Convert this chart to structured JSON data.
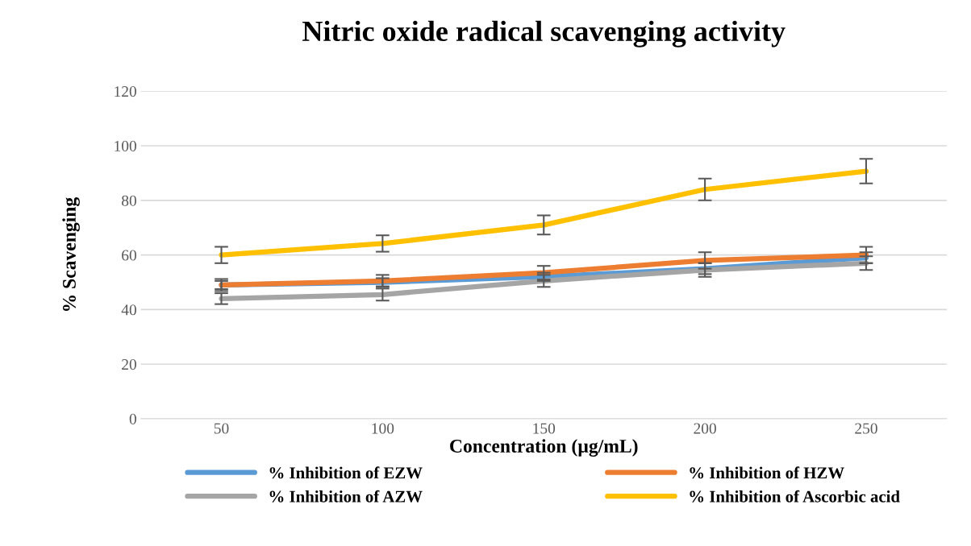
{
  "chart_data": {
    "type": "line",
    "title": "Nitric oxide radical scavenging activity",
    "xlabel": "Concentration (µg/mL)",
    "ylabel": "% Scavenging",
    "categories": [
      "50",
      "100",
      "150",
      "200",
      "250"
    ],
    "series": [
      {
        "name": "% Inhibition of EZW",
        "color": "#5b9bd5",
        "values": [
          49,
          50,
          52,
          55,
          59
        ],
        "errors": [
          1.5,
          1.5,
          1.5,
          2,
          2
        ]
      },
      {
        "name": "% Inhibition of HZW",
        "color": "#ed7d31",
        "values": [
          49,
          50.5,
          53.5,
          58,
          60
        ],
        "errors": [
          2.2,
          2.2,
          2.5,
          3,
          3
        ]
      },
      {
        "name": "% Inhibition of AZW",
        "color": "#a5a5a5",
        "values": [
          44,
          45.5,
          50.5,
          54.5,
          57
        ],
        "errors": [
          2,
          2.2,
          2.2,
          2.5,
          2.5
        ]
      },
      {
        "name": "% Inhibition of Ascorbic acid",
        "color": "#ffc000",
        "values": [
          60,
          64.2,
          71,
          84,
          90.7
        ],
        "errors": [
          3,
          3,
          3.5,
          4,
          4.5
        ]
      }
    ],
    "ylim": [
      0,
      120
    ],
    "yticks": [
      0,
      20,
      40,
      60,
      80,
      100,
      120
    ],
    "grid": "y",
    "legend": "bottom",
    "marker": "none",
    "line_style": "solid"
  }
}
